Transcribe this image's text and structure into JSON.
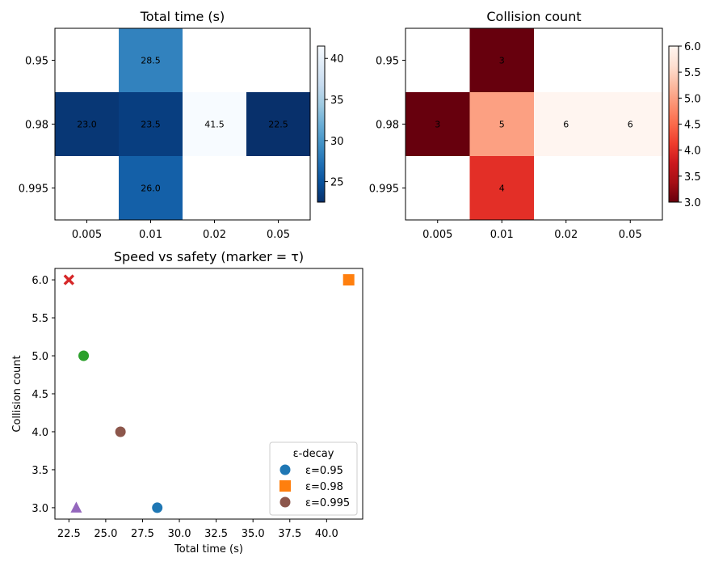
{
  "chart_data": [
    {
      "type": "heatmap",
      "title": "Total time (s)",
      "x_categories": [
        "0.005",
        "0.01",
        "0.02",
        "0.05"
      ],
      "y_categories": [
        "0.95",
        "0.98",
        "0.995"
      ],
      "cells": [
        {
          "x": "0.01",
          "y": "0.95",
          "value": 28.5,
          "label": "28.5"
        },
        {
          "x": "0.005",
          "y": "0.98",
          "value": 23.0,
          "label": "23.0"
        },
        {
          "x": "0.01",
          "y": "0.98",
          "value": 23.5,
          "label": "23.5"
        },
        {
          "x": "0.02",
          "y": "0.98",
          "value": 41.5,
          "label": "41.5"
        },
        {
          "x": "0.05",
          "y": "0.98",
          "value": 22.5,
          "label": "22.5"
        },
        {
          "x": "0.01",
          "y": "0.995",
          "value": 26.0,
          "label": "26.0"
        }
      ],
      "colormap": "Blues_r",
      "colorbar": {
        "min": 22.5,
        "max": 41.5,
        "ticks": [
          "25",
          "30",
          "35",
          "40"
        ],
        "tick_values": [
          25,
          30,
          35,
          40
        ]
      }
    },
    {
      "type": "heatmap",
      "title": "Collision count",
      "x_categories": [
        "0.005",
        "0.01",
        "0.02",
        "0.05"
      ],
      "y_categories": [
        "0.95",
        "0.98",
        "0.995"
      ],
      "cells": [
        {
          "x": "0.01",
          "y": "0.95",
          "value": 3,
          "label": "3"
        },
        {
          "x": "0.005",
          "y": "0.98",
          "value": 3,
          "label": "3"
        },
        {
          "x": "0.01",
          "y": "0.98",
          "value": 5,
          "label": "5"
        },
        {
          "x": "0.02",
          "y": "0.98",
          "value": 6,
          "label": "6"
        },
        {
          "x": "0.05",
          "y": "0.98",
          "value": 6,
          "label": "6"
        },
        {
          "x": "0.01",
          "y": "0.995",
          "value": 4,
          "label": "4"
        }
      ],
      "colormap": "Reds_r",
      "colorbar": {
        "min": 3.0,
        "max": 6.0,
        "ticks": [
          "3.0",
          "3.5",
          "4.0",
          "4.5",
          "5.0",
          "5.5",
          "6.0"
        ],
        "tick_values": [
          3.0,
          3.5,
          4.0,
          4.5,
          5.0,
          5.5,
          6.0
        ]
      }
    },
    {
      "type": "scatter",
      "title": "Speed vs safety (marker = τ)",
      "xlabel": "Total time (s)",
      "ylabel": "Collision count",
      "xlim": [
        21.55,
        42.45
      ],
      "ylim": [
        2.85,
        6.15
      ],
      "x_ticks": [
        "22.5",
        "25.0",
        "27.5",
        "30.0",
        "32.5",
        "35.0",
        "37.5",
        "40.0"
      ],
      "x_tick_values": [
        22.5,
        25.0,
        27.5,
        30.0,
        32.5,
        35.0,
        37.5,
        40.0
      ],
      "y_ticks": [
        "3.0",
        "3.5",
        "4.0",
        "4.5",
        "5.0",
        "5.5",
        "6.0"
      ],
      "y_tick_values": [
        3.0,
        3.5,
        4.0,
        4.5,
        5.0,
        5.5,
        6.0
      ],
      "points": [
        {
          "x": 28.5,
          "y": 3,
          "color": "#1f77b4",
          "marker": "circle"
        },
        {
          "x": 41.5,
          "y": 6,
          "color": "#ff7f0e",
          "marker": "square"
        },
        {
          "x": 23.5,
          "y": 5,
          "color": "#2ca02c",
          "marker": "circle"
        },
        {
          "x": 22.5,
          "y": 6,
          "color": "#d62728",
          "marker": "x"
        },
        {
          "x": 23.0,
          "y": 3,
          "color": "#9467bd",
          "marker": "triangle"
        },
        {
          "x": 26.0,
          "y": 4,
          "color": "#8c564b",
          "marker": "circle"
        }
      ],
      "legend": {
        "title": "ε-decay",
        "placement": "lower-right",
        "entries": [
          {
            "label": "ε=0.95",
            "color": "#1f77b4",
            "marker": "circle"
          },
          {
            "label": "ε=0.98",
            "color": "#ff7f0e",
            "marker": "square"
          },
          {
            "label": "ε=0.995",
            "color": "#8c564b",
            "marker": "circle"
          }
        ]
      }
    }
  ]
}
